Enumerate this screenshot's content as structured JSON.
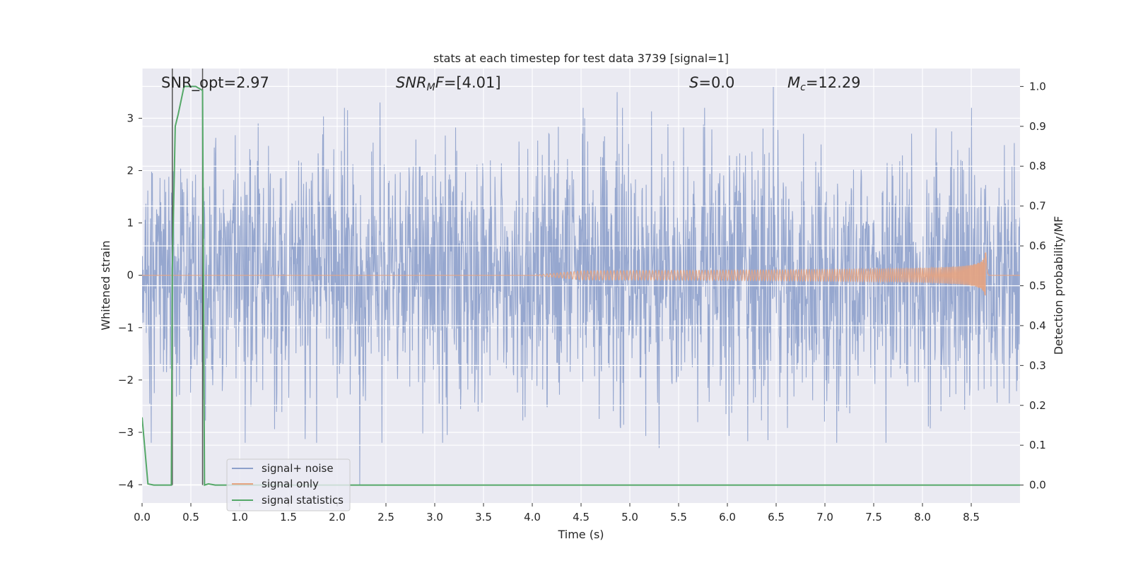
{
  "chart_data": {
    "type": "line",
    "title": "stats at each timestep for test data 3739 [signal=1]",
    "xlabel": "Time (s)",
    "ylabel_left": "Whitened strain",
    "ylabel_right": "Detection probability/MF",
    "xlim": [
      0.0,
      9.0
    ],
    "ylim_left": [
      -4.35,
      3.95
    ],
    "ylim_right": [
      -0.045,
      1.045
    ],
    "x_ticks": [
      "0.0",
      "0.5",
      "1.0",
      "1.5",
      "2.0",
      "2.5",
      "3.0",
      "3.5",
      "4.0",
      "4.5",
      "5.0",
      "5.5",
      "6.0",
      "6.5",
      "7.0",
      "7.5",
      "8.0",
      "8.5"
    ],
    "y_ticks_left": [
      "−4",
      "−3",
      "−2",
      "−1",
      "0",
      "1",
      "2",
      "3"
    ],
    "y_ticks_right": [
      "0.0",
      "0.1",
      "0.2",
      "0.3",
      "0.4",
      "0.5",
      "0.6",
      "0.7",
      "0.8",
      "0.9",
      "1.0"
    ],
    "grid": true,
    "legend_position": "lower-left",
    "annotations": [
      {
        "label": "SNR_opt=2.97",
        "parts": [
          {
            "t": "SNR_opt=2.97",
            "style": "normal"
          }
        ]
      },
      {
        "label": "SNR_MF=[4.01]",
        "parts": [
          {
            "t": "SNR",
            "style": "italic"
          },
          {
            "t": "M",
            "style": "italic-sub"
          },
          {
            "t": "F",
            "style": "italic"
          },
          {
            "t": "=[4.01]",
            "style": "normal"
          }
        ]
      },
      {
        "label": "S=0.0",
        "parts": [
          {
            "t": "S",
            "style": "italic"
          },
          {
            "t": "=0.0",
            "style": "normal"
          }
        ]
      },
      {
        "label": "M_c=12.29",
        "parts": [
          {
            "t": "M",
            "style": "italic"
          },
          {
            "t": "c",
            "style": "italic-sub"
          },
          {
            "t": "=12.29",
            "style": "normal"
          }
        ]
      }
    ],
    "vertical_markers_s": [
      0.31,
      0.62
    ],
    "series": [
      {
        "name": "signal+ noise",
        "color": "#8da0cb",
        "axis": "left",
        "description_values": "whitened noise plus signal, ~Gaussian with peak excursions about ±3.3",
        "duration_s": 9.0,
        "sample_count": 2300,
        "noise_sigma": 1.2,
        "notable_extremes": [
          {
            "x": 2.23,
            "y": -4.0
          },
          {
            "x": 4.87,
            "y": 3.5
          },
          {
            "x": 6.47,
            "y": 3.6
          },
          {
            "x": 2.44,
            "y": 3.3
          },
          {
            "x": 5.3,
            "y": -3.3
          }
        ]
      },
      {
        "name": "signal only",
        "color": "#e5a37f",
        "axis": "left",
        "chirp": {
          "start_s": 4.0,
          "merger_s": 8.65,
          "end_s": 8.68,
          "peak_amplitude": 0.5,
          "start_freq_hz": 8,
          "end_freq_hz": 120
        }
      },
      {
        "name": "signal statistics",
        "color": "#55a868",
        "axis": "right",
        "x": [
          0.0,
          0.06,
          0.12,
          0.2,
          0.3,
          0.31,
          0.34,
          0.37,
          0.43,
          0.5,
          0.55,
          0.62,
          0.64,
          0.68,
          0.75,
          1.0,
          2.0,
          3.0,
          4.0,
          5.0,
          6.0,
          7.0,
          8.0,
          9.0
        ],
        "y": [
          0.17,
          0.003,
          0.0,
          0.0,
          0.0,
          0.54,
          0.9,
          0.93,
          1.0,
          1.0,
          1.0,
          0.99,
          0.0,
          0.003,
          0.0,
          0.0,
          0.0,
          0.0,
          0.0,
          0.0,
          0.0,
          0.0,
          0.0,
          0.0
        ]
      }
    ]
  }
}
